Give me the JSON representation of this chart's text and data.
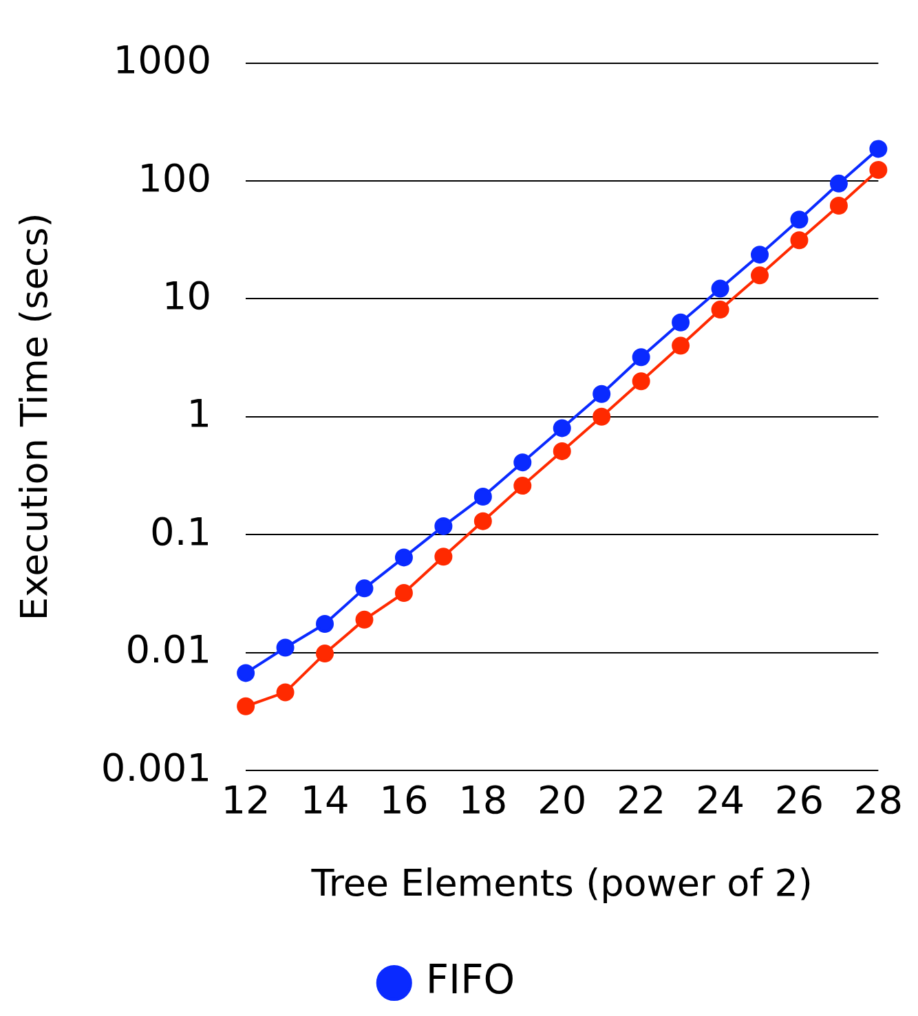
{
  "chart_data": {
    "type": "line",
    "xlabel": "Tree Elements (power of 2)",
    "ylabel": "Execution Time (secs)",
    "x": [
      12,
      13,
      14,
      15,
      16,
      17,
      18,
      19,
      20,
      21,
      22,
      23,
      24,
      25,
      26,
      27,
      28
    ],
    "series": [
      {
        "color": "#ff2a00",
        "values": [
          0.0035,
          0.0046,
          0.0098,
          0.019,
          0.032,
          0.065,
          0.13,
          0.26,
          0.51,
          1.0,
          2.0,
          4.0,
          8.1,
          15.8,
          31.4,
          61.6,
          124
        ]
      },
      {
        "name": "FIFO",
        "color": "#0a2aff",
        "values": [
          0.0067,
          0.011,
          0.0175,
          0.035,
          0.064,
          0.118,
          0.21,
          0.41,
          0.8,
          1.56,
          3.2,
          6.3,
          12.2,
          23.7,
          47,
          95,
          187
        ]
      }
    ],
    "xlim": [
      12,
      28
    ],
    "xticks": [
      12,
      14,
      16,
      18,
      20,
      22,
      24,
      26,
      28
    ],
    "ylim": [
      0.001,
      1000
    ],
    "yticks": [
      0.001,
      0.01,
      0.1,
      1,
      10,
      100,
      1000
    ],
    "log": "y",
    "grid": "y",
    "legend": "bottom",
    "marker": "circle",
    "line_style": "solid"
  }
}
